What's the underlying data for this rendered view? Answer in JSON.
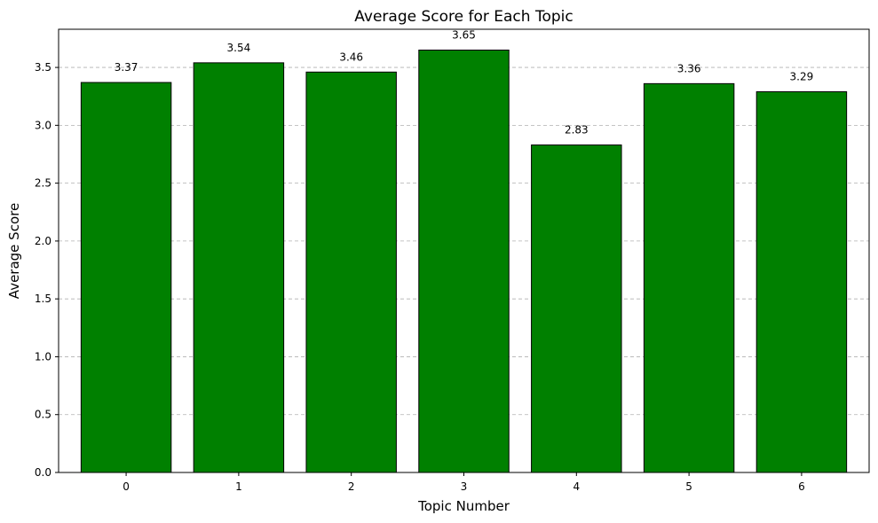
{
  "chart_data": {
    "type": "bar",
    "title": "Average Score for Each Topic",
    "xlabel": "Topic Number",
    "ylabel": "Average Score",
    "categories": [
      "0",
      "1",
      "2",
      "3",
      "4",
      "5",
      "6"
    ],
    "values": [
      3.37,
      3.54,
      3.46,
      3.65,
      2.83,
      3.36,
      3.29
    ],
    "data_labels": [
      "3.37",
      "3.54",
      "3.46",
      "3.65",
      "2.83",
      "3.36",
      "3.29"
    ],
    "ylim": [
      0,
      3.83
    ],
    "yticks": [
      "0.0",
      "0.5",
      "1.0",
      "1.5",
      "2.0",
      "2.5",
      "3.0",
      "3.5"
    ],
    "grid": "y-axis dashed",
    "legend": "none",
    "bar_color": "#008000",
    "bar_edge_color": "#000000"
  }
}
